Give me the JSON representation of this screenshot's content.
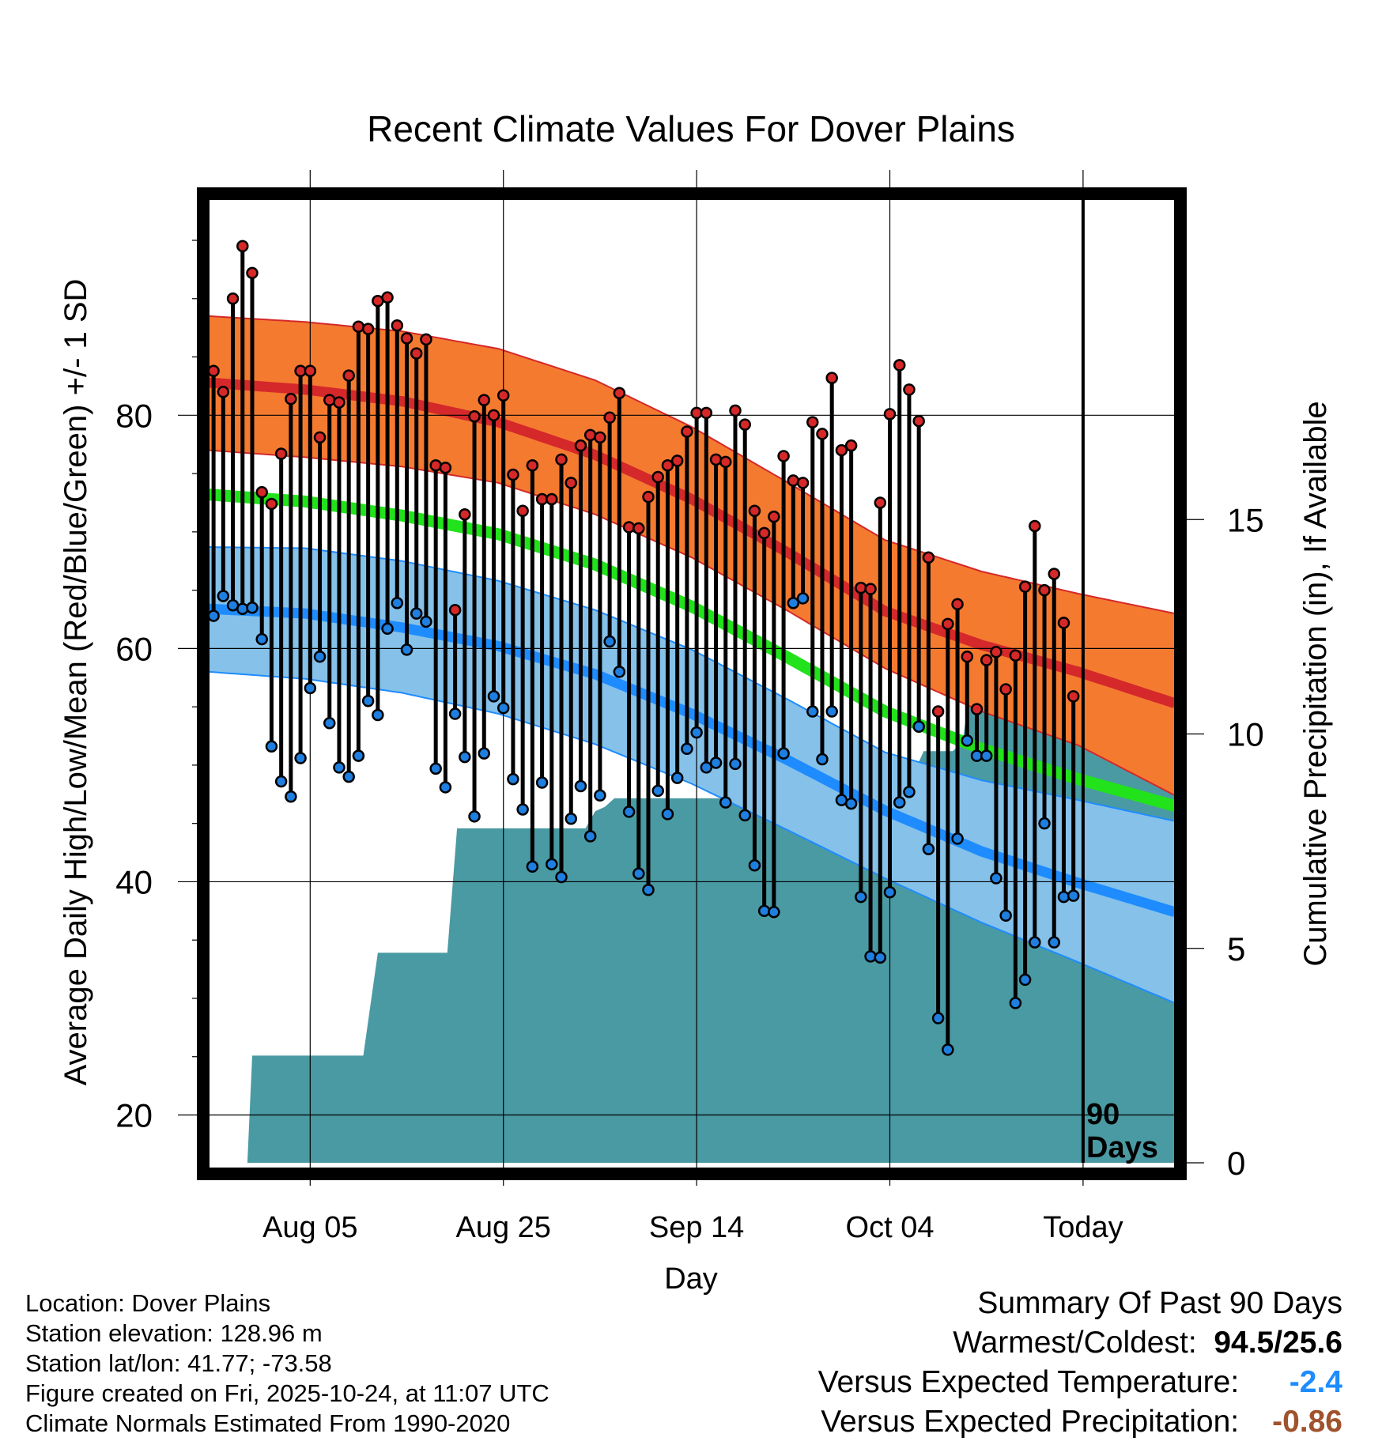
{
  "colors": {
    "high_band": "#f47a30",
    "high_mean": "#d4282a",
    "mean_line": "#22e21b",
    "low_band": "#85c1e9",
    "low_mean": "#1e8cff",
    "precip_fill": "#4a9aa3",
    "high_dot": "#d62828",
    "low_dot": "#1e7fe0",
    "temp_anomaly": "#1e8cff",
    "precip_anomaly": "#a0522d"
  },
  "chart_data": {
    "type": "line",
    "title": "Recent Climate Values For Dover Plains",
    "xlabel": "Day",
    "ylabel": "Average Daily High/Low/Mean (Red/Blue/Green) +/- 1 SD",
    "y2label": "Cumulative Precipitation (in), If Available",
    "ylim": [
      15.9,
      99
    ],
    "y_ticks": [
      20,
      40,
      60,
      80
    ],
    "y2lim": [
      0,
      22.6
    ],
    "y2_ticks": [
      0,
      5,
      10,
      15
    ],
    "x_day_range": [
      0,
      100
    ],
    "x_ticks": [
      {
        "day": 10.5,
        "label": "Aug 05"
      },
      {
        "day": 30.5,
        "label": "Aug 25"
      },
      {
        "day": 50.5,
        "label": "Sep 14"
      },
      {
        "day": 70.5,
        "label": "Oct 04"
      },
      {
        "day": 90.5,
        "label": "Today"
      }
    ],
    "today_day": 90.5,
    "today_note": [
      "90",
      "Days"
    ],
    "normals": {
      "x": [
        0,
        10,
        20,
        30,
        40,
        50,
        60,
        70,
        80,
        90,
        100
      ],
      "high_mean": [
        82.8,
        82.2,
        81.2,
        79.4,
        76.6,
        72.8,
        68.2,
        63.2,
        60.3,
        58.0,
        55.3
      ],
      "high_upper": [
        88.5,
        88.0,
        87.2,
        85.7,
        83.0,
        79.0,
        74.2,
        69.3,
        66.6,
        64.7,
        63.0
      ],
      "high_lower": [
        77.0,
        76.4,
        75.6,
        74.2,
        71.5,
        67.8,
        63.2,
        58.3,
        54.6,
        51.7,
        47.4
      ],
      "mean": [
        73.2,
        72.6,
        71.4,
        69.8,
        67.2,
        63.6,
        59.2,
        54.6,
        51.4,
        48.8,
        46.5
      ],
      "low_mean": [
        63.4,
        63.0,
        61.8,
        60.2,
        57.8,
        54.4,
        50.4,
        46.1,
        42.6,
        39.9,
        37.4
      ],
      "low_upper": [
        68.7,
        68.6,
        67.5,
        65.8,
        63.3,
        59.9,
        55.6,
        51.1,
        48.7,
        47.0,
        45.2
      ],
      "low_lower": [
        58.0,
        57.4,
        56.2,
        54.4,
        51.8,
        48.4,
        44.4,
        40.3,
        36.5,
        33.1,
        29.6
      ]
    },
    "series": [
      {
        "name": "High",
        "values": [
          83.8,
          82.0,
          90.0,
          94.5,
          92.2,
          73.4,
          72.4,
          76.7,
          81.4,
          83.8,
          83.8,
          78.1,
          81.3,
          81.1,
          83.4,
          87.6,
          87.4,
          89.8,
          90.1,
          87.7,
          86.6,
          85.3,
          86.5,
          75.7,
          75.5,
          63.3,
          71.5,
          79.9,
          81.3,
          80.0,
          81.7,
          74.9,
          71.8,
          75.7,
          72.8,
          72.8,
          76.2,
          74.2,
          77.4,
          78.3,
          78.1,
          79.8,
          81.9,
          70.4,
          70.3,
          73.0,
          74.7,
          75.7,
          76.1,
          78.6,
          80.2,
          80.2,
          76.2,
          76.0,
          80.4,
          79.2,
          71.8,
          69.9,
          71.3,
          76.5,
          74.4,
          74.2,
          79.4,
          78.4,
          83.2,
          77.0,
          77.4,
          65.2,
          65.1,
          72.5,
          80.1,
          84.3,
          82.2,
          79.5,
          67.8,
          54.6,
          62.1,
          63.8,
          59.3,
          54.8,
          59.0,
          59.7,
          56.5,
          59.4,
          65.3,
          70.5,
          65.0,
          66.4,
          62.2,
          55.9
        ]
      },
      {
        "name": "Low",
        "values": [
          62.8,
          64.5,
          63.7,
          63.4,
          63.5,
          60.8,
          51.6,
          48.6,
          47.3,
          50.6,
          56.6,
          59.3,
          53.6,
          49.8,
          49.0,
          50.8,
          55.5,
          54.3,
          61.7,
          63.9,
          59.9,
          63.0,
          62.3,
          49.7,
          48.1,
          54.4,
          50.7,
          45.6,
          51.0,
          55.9,
          54.9,
          48.8,
          46.2,
          41.3,
          48.5,
          41.5,
          40.4,
          45.4,
          48.2,
          43.9,
          47.4,
          60.6,
          58.0,
          46.0,
          40.7,
          39.3,
          47.8,
          45.8,
          48.9,
          51.4,
          52.8,
          49.8,
          50.2,
          46.8,
          50.1,
          45.7,
          41.4,
          37.5,
          37.4,
          51.0,
          63.9,
          64.3,
          54.6,
          50.5,
          54.6,
          47.0,
          46.7,
          38.7,
          33.6,
          33.5,
          39.1,
          46.8,
          47.7,
          53.3,
          42.8,
          28.3,
          25.6,
          43.7,
          52.1,
          50.8,
          50.8,
          40.3,
          37.1,
          29.6,
          31.6,
          34.8,
          45.0,
          34.8,
          38.7,
          38.8
        ]
      },
      {
        "name": "Cumulative Precipitation",
        "x": [
          0,
          4,
          4.5,
          16,
          17.5,
          24.7,
          25.7,
          39,
          40,
          41,
          42,
          59,
          61,
          62,
          73,
          74,
          77,
          78,
          79,
          83,
          84,
          90,
          90.5,
          100
        ],
        "values": [
          0,
          0,
          2.5,
          2.5,
          4.9,
          4.9,
          7.8,
          7.8,
          8.2,
          8.3,
          8.5,
          8.5,
          8.9,
          9.1,
          9.1,
          9.6,
          9.6,
          9.8,
          11.3,
          11.3,
          11.7,
          11.7,
          11.8,
          11.8
        ]
      }
    ]
  },
  "footer": {
    "location": "Location: Dover Plains",
    "elevation": "Station elevation: 128.96 m",
    "latlon": "Station lat/lon: 41.77; -73.58",
    "created": "Figure created on Fri, 2025-10-24, at 11:07 UTC",
    "normals": "Climate Normals Estimated From 1990-2020"
  },
  "summary": {
    "heading": "Summary Of Past 90 Days",
    "warmest_label": "Warmest/Coldest:",
    "warmest_value": "94.5/25.6",
    "temp_label": "Versus Expected Temperature:",
    "temp_value": "-2.4",
    "precip_label": "Versus Expected Precipitation:",
    "precip_value": "-0.86"
  }
}
